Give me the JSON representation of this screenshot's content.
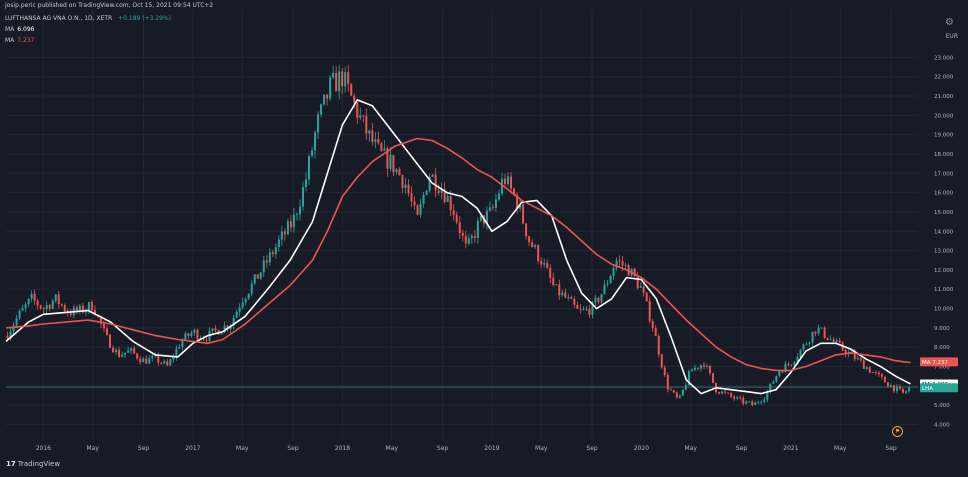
{
  "header": {
    "publisher": "josip.peric published on TradingView.com, Oct 15, 2021 09:54 UTC+2",
    "symbol": "LUFTHANSA AG VNA O.N., 1D, XETR",
    "change": "+0.189 (+3.29%)",
    "ma1_label": "MA",
    "ma1_value": "6.096",
    "ma2_label": "MA",
    "ma2_value": "7.237",
    "currency": "EUR"
  },
  "footer": {
    "logo_text": "TradingView",
    "logo_mark": "17"
  },
  "icons": {
    "settings": "gear-icon",
    "flag": "flag-icon"
  },
  "colors": {
    "background": "#171b26",
    "up": "#26a69a",
    "down": "#ef5350",
    "ma_fast": "#ffffff",
    "ma_slow": "#ef5350",
    "grid": "#222634",
    "price_line": "#2b6b66"
  },
  "chart_data": {
    "type": "line",
    "title": "LUFTHANSA AG VNA O.N., 1D, XETR",
    "xlabel": "",
    "ylabel": "",
    "currency": "EUR",
    "ylim": [
      3.3,
      23.9
    ],
    "yticks": [
      "4.000",
      "5.000",
      "6.000",
      "7.000",
      "8.000",
      "9.000",
      "10.000",
      "11.000",
      "12.000",
      "13.000",
      "14.000",
      "15.000",
      "16.000",
      "17.000",
      "18.000",
      "19.000",
      "20.000",
      "21.000",
      "22.000",
      "23.000"
    ],
    "xticks": [
      "2016",
      "May",
      "Sep",
      "2017",
      "May",
      "Sep",
      "2018",
      "May",
      "Sep",
      "2019",
      "May",
      "Sep",
      "2020",
      "May",
      "Sep",
      "2021",
      "May",
      "Sep"
    ],
    "xtick_t": [
      2016.0,
      2016.33,
      2016.67,
      2017.0,
      2017.33,
      2017.67,
      2018.0,
      2018.33,
      2018.67,
      2019.0,
      2019.33,
      2019.67,
      2020.0,
      2020.33,
      2020.67,
      2021.0,
      2021.33,
      2021.67
    ],
    "x_range": [
      2015.75,
      2021.85
    ],
    "grid": true,
    "legend": "top-left",
    "price_labels": [
      {
        "text": "MA 7.237",
        "value": 7.237,
        "color": "#ef5350"
      },
      {
        "text": "MA 6.096",
        "value": 6.096,
        "color": "#ffffff"
      },
      {
        "text": "LHA",
        "value": 5.9,
        "color": "#26a69a"
      }
    ],
    "last_price": 5.93,
    "series": [
      {
        "name": "Price",
        "kind": "candles",
        "t": [
          2015.75,
          2015.83,
          2015.92,
          2016.0,
          2016.08,
          2016.17,
          2016.25,
          2016.33,
          2016.42,
          2016.5,
          2016.58,
          2016.67,
          2016.75,
          2016.83,
          2016.92,
          2017.0,
          2017.08,
          2017.17,
          2017.25,
          2017.33,
          2017.42,
          2017.5,
          2017.58,
          2017.67,
          2017.75,
          2017.83,
          2017.92,
          2018.0,
          2018.08,
          2018.17,
          2018.25,
          2018.33,
          2018.42,
          2018.5,
          2018.58,
          2018.67,
          2018.75,
          2018.83,
          2018.92,
          2019.0,
          2019.08,
          2019.17,
          2019.25,
          2019.33,
          2019.42,
          2019.5,
          2019.58,
          2019.67,
          2019.75,
          2019.83,
          2019.92,
          2020.0,
          2020.08,
          2020.17,
          2020.25,
          2020.33,
          2020.42,
          2020.5,
          2020.58,
          2020.67,
          2020.75,
          2020.83,
          2020.92,
          2021.0,
          2021.08,
          2021.17,
          2021.25,
          2021.33,
          2021.42,
          2021.5,
          2021.58,
          2021.67,
          2021.75,
          2021.8
        ],
        "values": [
          8.6,
          9.6,
          10.5,
          10.0,
          10.5,
          9.8,
          9.9,
          10.2,
          8.5,
          7.6,
          7.8,
          7.3,
          7.4,
          7.0,
          8.3,
          8.8,
          8.5,
          8.9,
          9.2,
          10.5,
          11.5,
          12.5,
          13.5,
          14.5,
          16.5,
          19.5,
          21.5,
          22.0,
          20.5,
          19.0,
          18.0,
          17.5,
          16.5,
          14.5,
          17.0,
          16.2,
          15.0,
          13.0,
          14.5,
          15.0,
          16.8,
          15.5,
          13.5,
          12.5,
          11.0,
          10.5,
          9.8,
          10.0,
          11.0,
          12.5,
          12.0,
          11.0,
          9.0,
          6.0,
          5.2,
          6.8,
          7.2,
          5.8,
          5.5,
          5.2,
          5.0,
          5.5,
          6.8,
          7.2,
          8.0,
          9.0,
          8.5,
          8.0,
          7.5,
          7.0,
          6.5,
          6.0,
          5.6,
          5.93
        ]
      },
      {
        "name": "MA",
        "kind": "line",
        "value_label": "6.096",
        "color": "#ffffff",
        "t": [
          2015.75,
          2015.9,
          2016.0,
          2016.15,
          2016.3,
          2016.45,
          2016.6,
          2016.75,
          2016.9,
          2017.0,
          2017.1,
          2017.2,
          2017.35,
          2017.5,
          2017.65,
          2017.8,
          2017.9,
          2018.0,
          2018.1,
          2018.2,
          2018.35,
          2018.5,
          2018.6,
          2018.7,
          2018.8,
          2018.9,
          2019.0,
          2019.1,
          2019.2,
          2019.3,
          2019.4,
          2019.5,
          2019.6,
          2019.7,
          2019.8,
          2019.9,
          2020.0,
          2020.1,
          2020.2,
          2020.3,
          2020.4,
          2020.5,
          2020.6,
          2020.7,
          2020.8,
          2020.9,
          2021.0,
          2021.1,
          2021.2,
          2021.3,
          2021.4,
          2021.5,
          2021.6,
          2021.7,
          2021.8
        ],
        "values": [
          8.3,
          9.3,
          9.7,
          9.8,
          9.9,
          9.3,
          8.3,
          7.6,
          7.5,
          8.2,
          8.6,
          8.8,
          9.6,
          11.0,
          12.5,
          14.5,
          17.0,
          19.5,
          20.8,
          20.5,
          19.0,
          17.5,
          16.5,
          16.0,
          15.8,
          15.2,
          14.0,
          14.5,
          15.5,
          15.6,
          14.8,
          12.5,
          10.8,
          10.0,
          10.5,
          11.6,
          11.5,
          10.5,
          8.5,
          6.3,
          5.6,
          5.9,
          5.8,
          5.7,
          5.6,
          5.8,
          6.7,
          7.8,
          8.2,
          8.2,
          7.9,
          7.4,
          7.0,
          6.5,
          6.1
        ]
      },
      {
        "name": "MA",
        "kind": "line",
        "value_label": "7.237",
        "color": "#ef5350",
        "t": [
          2015.75,
          2015.9,
          2016.0,
          2016.15,
          2016.3,
          2016.45,
          2016.6,
          2016.75,
          2016.9,
          2017.0,
          2017.1,
          2017.2,
          2017.35,
          2017.5,
          2017.65,
          2017.8,
          2017.9,
          2018.0,
          2018.1,
          2018.2,
          2018.35,
          2018.5,
          2018.6,
          2018.7,
          2018.8,
          2018.9,
          2019.0,
          2019.1,
          2019.2,
          2019.3,
          2019.4,
          2019.5,
          2019.6,
          2019.7,
          2019.8,
          2019.9,
          2020.0,
          2020.1,
          2020.2,
          2020.3,
          2020.4,
          2020.5,
          2020.6,
          2020.7,
          2020.8,
          2020.9,
          2021.0,
          2021.1,
          2021.2,
          2021.3,
          2021.4,
          2021.5,
          2021.6,
          2021.7,
          2021.8
        ],
        "values": [
          9.0,
          9.1,
          9.2,
          9.3,
          9.4,
          9.2,
          8.9,
          8.6,
          8.4,
          8.3,
          8.2,
          8.4,
          9.2,
          10.2,
          11.2,
          12.5,
          14.0,
          15.8,
          16.8,
          17.6,
          18.4,
          18.8,
          18.7,
          18.3,
          17.8,
          17.2,
          16.8,
          16.2,
          15.6,
          15.2,
          14.8,
          14.2,
          13.5,
          12.8,
          12.3,
          12.0,
          11.6,
          11.0,
          10.2,
          9.4,
          8.7,
          8.0,
          7.5,
          7.1,
          6.9,
          6.8,
          6.8,
          7.0,
          7.3,
          7.6,
          7.7,
          7.6,
          7.5,
          7.3,
          7.2
        ]
      }
    ]
  }
}
